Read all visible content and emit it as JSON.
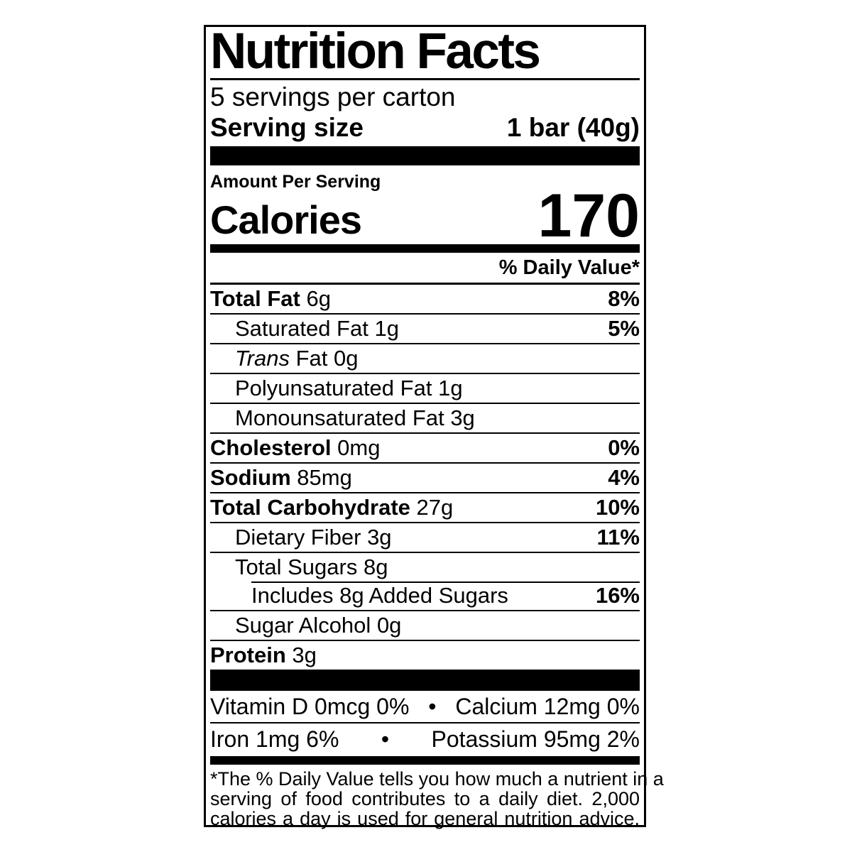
{
  "label": {
    "title": "Nutrition Facts",
    "servings_per_container": "5 servings per carton",
    "serving_size": {
      "label": "Serving size",
      "value": "1 bar (40g)"
    },
    "amount_per_serving": "Amount Per Serving",
    "calories": {
      "label": "Calories",
      "value": "170"
    },
    "daily_value_header": "% Daily Value*",
    "rows": [
      {
        "name": "Total Fat",
        "amount": "6g",
        "dv": "8%"
      },
      {
        "name": "Saturated Fat",
        "amount": "1g",
        "dv": "5%"
      },
      {
        "name_italic": "Trans",
        "name": "Fat",
        "amount": "0g",
        "dv": ""
      },
      {
        "name": "Polyunsaturated Fat",
        "amount": "1g",
        "dv": ""
      },
      {
        "name": "Monounsaturated Fat",
        "amount": "3g",
        "dv": ""
      },
      {
        "name": "Cholesterol",
        "amount": "0mg",
        "dv": "0%"
      },
      {
        "name": "Sodium",
        "amount": "85mg",
        "dv": "4%"
      },
      {
        "name": "Total Carbohydrate",
        "amount": "27g",
        "dv": "10%"
      },
      {
        "name": "Dietary Fiber",
        "amount": "3g",
        "dv": "11%"
      },
      {
        "name": "Total Sugars",
        "amount": "8g",
        "dv": ""
      },
      {
        "name": "Includes 8g Added Sugars",
        "amount": "",
        "dv": "16%"
      },
      {
        "name": "Sugar Alcohol",
        "amount": "0g",
        "dv": ""
      },
      {
        "name": "Protein",
        "amount": "3g",
        "dv": ""
      }
    ],
    "micronutrients": [
      {
        "left": "Vitamin D 0mcg 0%",
        "separator": "•",
        "right": "Calcium 12mg 0%"
      },
      {
        "left": "Iron 1mg 6%",
        "separator": "•",
        "right": "Potassium 95mg 2%"
      }
    ],
    "footnote": {
      "line1": "*The % Daily Value tells you how much a nutrient in a",
      "line2": "serving of food contributes to a daily diet. 2,000",
      "line3": "calories a day is used for general nutrition advice."
    },
    "colors": {
      "ink": "#000000",
      "background": "#ffffff"
    }
  }
}
